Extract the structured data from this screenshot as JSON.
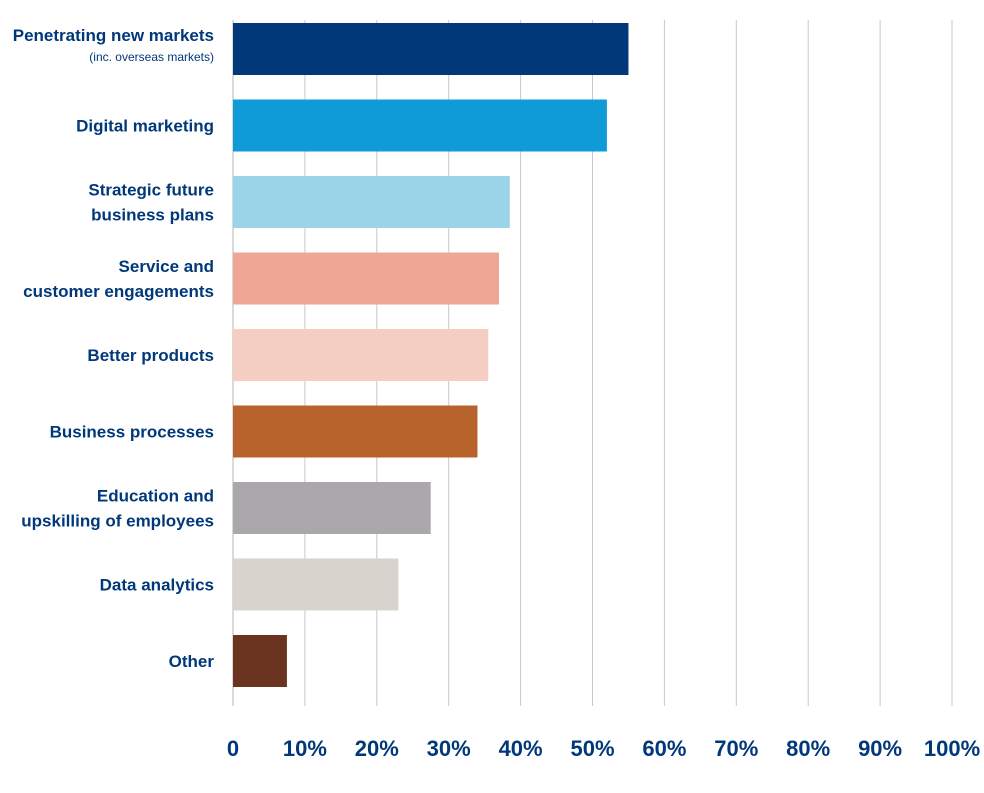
{
  "chart_data": {
    "type": "bar",
    "orientation": "horizontal",
    "title": "",
    "xlabel": "",
    "ylabel": "",
    "xlim": [
      0,
      100
    ],
    "grid": true,
    "legend": "none",
    "x_ticks": [
      "0",
      "10%",
      "20%",
      "30%",
      "40%",
      "50%",
      "60%",
      "70%",
      "80%",
      "90%",
      "100%"
    ],
    "categories": [
      {
        "lines": [
          "Penetrating new markets"
        ],
        "sub": "(inc. overseas markets)",
        "value": 55,
        "color": "#00387a"
      },
      {
        "lines": [
          "Digital marketing"
        ],
        "value": 52,
        "color": "#0f9ad8"
      },
      {
        "lines": [
          "Strategic future",
          "business plans"
        ],
        "value": 38.5,
        "color": "#9bd3e8"
      },
      {
        "lines": [
          "Service and",
          "customer engagements"
        ],
        "value": 37,
        "color": "#eea794"
      },
      {
        "lines": [
          "Better products"
        ],
        "value": 35.5,
        "color": "#f4cec3"
      },
      {
        "lines": [
          "Business processes"
        ],
        "value": 34,
        "color": "#b8622c"
      },
      {
        "lines": [
          "Education and",
          "upskilling of employees"
        ],
        "value": 27.5,
        "color": "#aaa8aa"
      },
      {
        "lines": [
          "Data analytics"
        ],
        "value": 23,
        "color": "#d9d3cd"
      },
      {
        "lines": [
          "Other"
        ],
        "value": 7.5,
        "color": "#6b3420"
      }
    ],
    "colors": {
      "label_text": "#00387a",
      "gridline": "#c8c8c8",
      "axis": "#b4b4b4"
    }
  }
}
